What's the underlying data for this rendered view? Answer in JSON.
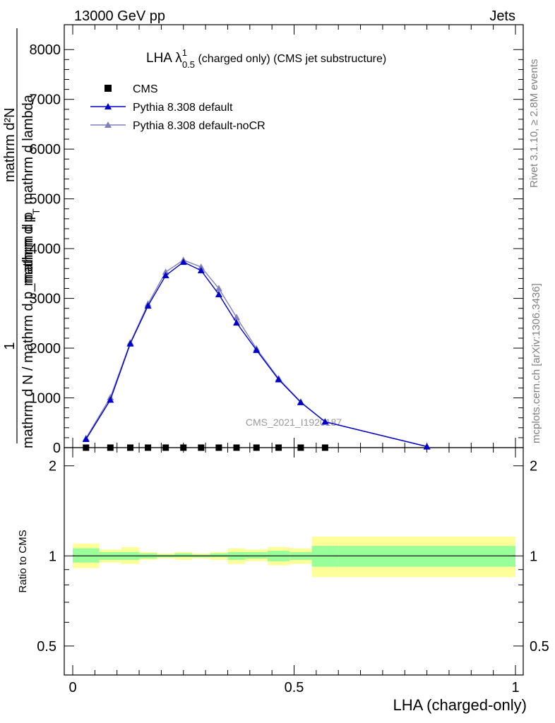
{
  "header": {
    "left": "13000 GeV pp",
    "right": "Jets"
  },
  "title": {
    "main": "LHA λ",
    "sup": "1",
    "sub": "0.5",
    "rest": " (charged only) (CMS jet substructure)"
  },
  "side_labels": {
    "rivet": "Rivet 3.1.10, ≥ 2.8M events",
    "mcplots": "mcplots.cern.ch [arXiv:1306.3436]"
  },
  "watermark": "CMS_2021_I1920187",
  "main_ylabel": {
    "one": "1",
    "denominator": "mathrm d N / mathrm d p_mathrm d p",
    "numerator_top": "mathrm d²N",
    "numerator_bottom": "mathrm d p",
    "numerator_sub": "T",
    "numerator_tail": " mathrm d lambda"
  },
  "ratio_ylabel": "Ratio to CMS",
  "xlabel": "LHA (charged-only)",
  "legend": [
    {
      "label": "CMS",
      "color": "#000000",
      "marker": "square"
    },
    {
      "label": "Pythia 8.308 default",
      "color": "#0000cc",
      "marker": "triangle"
    },
    {
      "label": "Pythia 8.308 default-noCR",
      "color": "#7f7fbf",
      "marker": "triangle"
    }
  ],
  "main_yticks": [
    "0",
    "1000",
    "2000",
    "3000",
    "4000",
    "5000",
    "6000",
    "7000",
    "8000"
  ],
  "ratio_yticks_left": [
    "0.5",
    "1",
    "2"
  ],
  "ratio_yticks_right": [
    "0.5",
    "1",
    "2"
  ],
  "xticks": [
    "0",
    "0.5",
    "1"
  ],
  "chart_data": [
    {
      "type": "line",
      "xlim": [
        0,
        1
      ],
      "ylim": [
        0,
        8500
      ],
      "xlabel": "LHA (charged-only)",
      "series": [
        {
          "name": "CMS",
          "color": "#000000",
          "x": [
            0.03,
            0.085,
            0.13,
            0.17,
            0.21,
            0.25,
            0.29,
            0.33,
            0.37,
            0.415,
            0.465,
            0.515,
            0.57
          ],
          "y": [
            0,
            0,
            0,
            0,
            0,
            0,
            0,
            0,
            0,
            0,
            0,
            0,
            0
          ]
        },
        {
          "name": "Pythia 8.308 default",
          "color": "#0000cc",
          "x": [
            0.03,
            0.085,
            0.13,
            0.17,
            0.21,
            0.25,
            0.29,
            0.33,
            0.37,
            0.415,
            0.465,
            0.515,
            0.57,
            0.8
          ],
          "y": [
            170,
            960,
            2090,
            2850,
            3460,
            3730,
            3560,
            3080,
            2510,
            1960,
            1370,
            910,
            520,
            20
          ]
        },
        {
          "name": "Pythia 8.308 default-noCR",
          "color": "#7f7fbf",
          "x": [
            0.03,
            0.085,
            0.13,
            0.17,
            0.21,
            0.25,
            0.29,
            0.33,
            0.37,
            0.415,
            0.465,
            0.515,
            0.57,
            0.8
          ],
          "y": [
            190,
            1010,
            2110,
            2890,
            3530,
            3770,
            3630,
            3200,
            2620,
            1990,
            1390,
            920,
            520,
            25
          ]
        }
      ]
    },
    {
      "type": "area",
      "ylabel": "Ratio to CMS",
      "xlim": [
        0,
        1
      ],
      "ylim": [
        0.4,
        2.3
      ],
      "log_y": true,
      "bins": [
        {
          "x": [
            0.0,
            0.06
          ],
          "inner": [
            0.95,
            1.06
          ],
          "outer": [
            0.91,
            1.1
          ]
        },
        {
          "x": [
            0.06,
            0.11
          ],
          "inner": [
            0.97,
            1.03
          ],
          "outer": [
            0.95,
            1.05
          ]
        },
        {
          "x": [
            0.11,
            0.15
          ],
          "inner": [
            0.97,
            1.03
          ],
          "outer": [
            0.94,
            1.07
          ]
        },
        {
          "x": [
            0.15,
            0.19
          ],
          "inner": [
            0.98,
            1.02
          ],
          "outer": [
            0.97,
            1.03
          ]
        },
        {
          "x": [
            0.19,
            0.23
          ],
          "inner": [
            0.99,
            1.01
          ],
          "outer": [
            0.98,
            1.02
          ]
        },
        {
          "x": [
            0.23,
            0.27
          ],
          "inner": [
            0.99,
            1.02
          ],
          "outer": [
            0.97,
            1.03
          ]
        },
        {
          "x": [
            0.27,
            0.31
          ],
          "inner": [
            0.99,
            1.01
          ],
          "outer": [
            0.98,
            1.02
          ]
        },
        {
          "x": [
            0.31,
            0.35
          ],
          "inner": [
            0.99,
            1.02
          ],
          "outer": [
            0.97,
            1.03
          ]
        },
        {
          "x": [
            0.35,
            0.39
          ],
          "inner": [
            0.97,
            1.03
          ],
          "outer": [
            0.94,
            1.06
          ]
        },
        {
          "x": [
            0.39,
            0.44
          ],
          "inner": [
            0.98,
            1.03
          ],
          "outer": [
            0.96,
            1.05
          ]
        },
        {
          "x": [
            0.44,
            0.49
          ],
          "inner": [
            0.96,
            1.04
          ],
          "outer": [
            0.93,
            1.07
          ]
        },
        {
          "x": [
            0.49,
            0.54
          ],
          "inner": [
            0.97,
            1.03
          ],
          "outer": [
            0.94,
            1.06
          ]
        },
        {
          "x": [
            0.54,
            0.6
          ],
          "inner": [
            0.92,
            1.08
          ],
          "outer": [
            0.85,
            1.16
          ]
        },
        {
          "x": [
            0.6,
            1.0
          ],
          "inner": [
            0.92,
            1.08
          ],
          "outer": [
            0.85,
            1.16
          ]
        }
      ]
    }
  ]
}
